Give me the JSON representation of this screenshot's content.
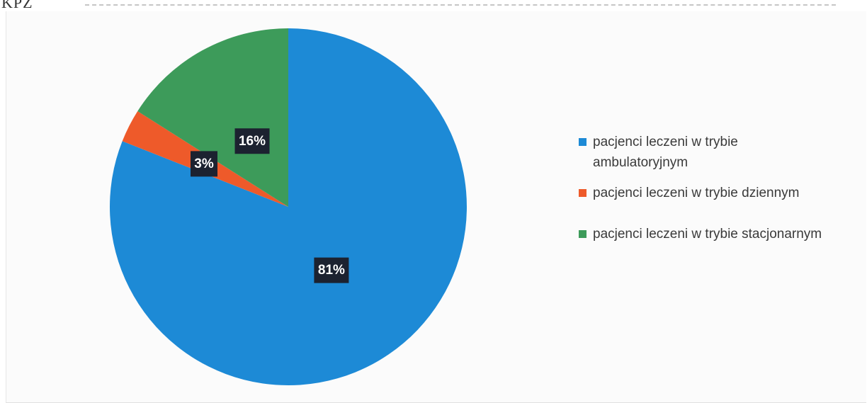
{
  "page": {
    "heading_fragment": "KPZ"
  },
  "chart_data": {
    "type": "pie",
    "categories": [
      "pacjenci leczeni w trybie ambulatoryjnym",
      "pacjenci leczeni w trybie dziennym",
      "pacjenci leczeni w trybie stacjonarnym"
    ],
    "values": [
      81,
      3,
      16
    ],
    "data_labels": [
      "81%",
      "3%",
      "16%"
    ],
    "colors": [
      "#1d8ad6",
      "#ee5a2a",
      "#3d9b5a"
    ],
    "start_angle_deg": 0,
    "direction": "clockwise",
    "legend_position": "right",
    "title": ""
  }
}
